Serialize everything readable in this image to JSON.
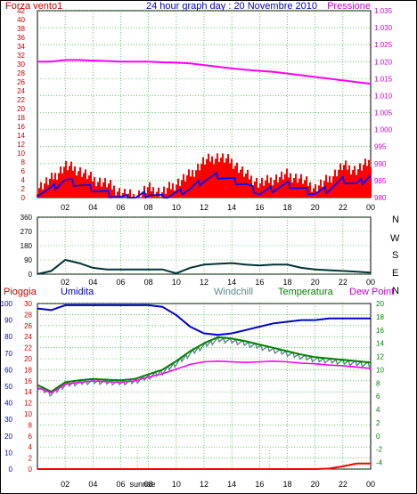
{
  "header": {
    "left_label": "Forza vento1",
    "title": "24 hour graph day : 20 Novembre 2010",
    "right_label": "Pressione"
  },
  "direction_labels": [
    "N",
    "W",
    "S",
    "E",
    "N"
  ],
  "bottom_header": {
    "rain": "Pioggia",
    "humidity": "Umidita",
    "windchill": "Windchill",
    "temperature": "Temperatura",
    "dewpoint": "Dew Point"
  },
  "markers": {
    "sunrise": "sunrise",
    "sunset": "sunset",
    "sunrise_tick": "sunrise"
  },
  "colors": {
    "wind_gust": "#ff0000",
    "wind_avg": "#0000ff",
    "pressure": "#ff00ff",
    "direction": "#003333",
    "humidity": "#0000cc",
    "windchill": "#5a8a8a",
    "temperature": "#008000",
    "dewpoint": "#ff00ff",
    "rain": "#ff0000",
    "grid": "#00aa00",
    "left_axis": "#cc0000",
    "right_axis": "#cc00cc"
  },
  "chart_data": [
    {
      "type": "line",
      "title": "24 hour graph day : 20 Novembre 2010",
      "x_ticks": [
        "02",
        "04",
        "06",
        "08",
        "10",
        "12",
        "14",
        "16",
        "18",
        "20",
        "22",
        "00"
      ],
      "y_left_label": "Forza vento1",
      "y_left_ticks": [
        "0",
        "2",
        "4",
        "6",
        "8",
        "10",
        "12",
        "14",
        "16",
        "18",
        "20",
        "22",
        "24",
        "26",
        "28",
        "30",
        "32",
        "34",
        "36",
        "38",
        "40",
        "42"
      ],
      "ylim_left": [
        0,
        42
      ],
      "y_right_label": "Pressione",
      "y_right_ticks": [
        "980",
        "985",
        "990",
        "995",
        "1.000",
        "1.005",
        "1.010",
        "1.015",
        "1.020",
        "1.025",
        "1.030",
        "1.035"
      ],
      "ylim_right": [
        980,
        1035
      ],
      "x_hours": [
        0,
        1,
        2,
        3,
        4,
        5,
        6,
        7,
        8,
        9,
        10,
        11,
        12,
        13,
        14,
        15,
        16,
        17,
        18,
        19,
        20,
        21,
        22,
        23,
        24
      ],
      "series": [
        {
          "name": "Forza vento1",
          "axis": "left",
          "values": [
            2,
            4,
            7,
            6,
            4,
            3,
            1,
            0,
            2,
            1,
            3,
            5,
            8,
            9,
            8,
            5,
            3,
            4,
            5,
            4,
            2,
            4,
            7,
            6,
            8
          ]
        },
        {
          "name": "Forza vento1",
          "axis": "left",
          "values": [
            1,
            2,
            4,
            3,
            2,
            1,
            0,
            0,
            1,
            0,
            1,
            2,
            4,
            5,
            4,
            3,
            1,
            2,
            3,
            2,
            1,
            2,
            4,
            3,
            5
          ]
        },
        {
          "name": "Pressione",
          "axis": "right",
          "values": [
            1020,
            1020,
            1020.5,
            1020.5,
            1020.3,
            1020.2,
            1020,
            1020,
            1020,
            1019.8,
            1019.7,
            1019.5,
            1019,
            1018.5,
            1018,
            1017.6,
            1017.3,
            1017,
            1016.5,
            1016,
            1015.5,
            1015,
            1014.5,
            1014,
            1013.5
          ]
        }
      ]
    },
    {
      "type": "line",
      "x_ticks": [
        "02",
        "04",
        "06",
        "08",
        "10",
        "12",
        "14",
        "16",
        "18",
        "20",
        "22",
        "00"
      ],
      "y_ticks": [
        "0",
        "90",
        "180",
        "270",
        "360"
      ],
      "ylim": [
        0,
        360
      ],
      "x_hours": [
        0,
        1,
        2,
        3,
        4,
        5,
        6,
        7,
        8,
        9,
        10,
        11,
        12,
        13,
        14,
        15,
        16,
        17,
        18,
        19,
        20,
        21,
        22,
        23,
        24
      ],
      "series": [
        {
          "values": [
            0,
            20,
            90,
            70,
            40,
            30,
            30,
            30,
            30,
            30,
            5,
            40,
            60,
            65,
            70,
            60,
            55,
            60,
            60,
            40,
            30,
            25,
            20,
            15,
            10
          ]
        }
      ]
    },
    {
      "type": "line",
      "x_ticks": [
        "02",
        "04",
        "06",
        "08",
        "10",
        "12",
        "14",
        "16",
        "18",
        "20",
        "22",
        "00"
      ],
      "y_left_label": "Pioggia",
      "y_left_ticks": [
        "0",
        "2",
        "4",
        "6",
        "8",
        "10",
        "12",
        "14",
        "16",
        "18",
        "20",
        "22",
        "24",
        "26",
        "28",
        "30"
      ],
      "ylim_left": [
        0,
        30
      ],
      "y_mid_label": "Umidita",
      "y_mid_ticks": [
        "0",
        "10",
        "20",
        "30",
        "40",
        "50",
        "60",
        "70",
        "80",
        "90",
        "100"
      ],
      "ylim_mid": [
        0,
        100
      ],
      "y_right_ticks": [
        "-4",
        "-2",
        "0",
        "2",
        "4",
        "6",
        "8",
        "10",
        "12",
        "14",
        "16",
        "18",
        "20"
      ],
      "ylim_right": [
        -5,
        20
      ],
      "x_hours": [
        0,
        1,
        2,
        3,
        4,
        5,
        6,
        7,
        8,
        9,
        10,
        11,
        12,
        13,
        14,
        15,
        16,
        17,
        18,
        19,
        20,
        21,
        22,
        23,
        24
      ],
      "series": [
        {
          "name": "Umidita",
          "axis": "mid",
          "values": [
            97,
            96,
            99,
            99,
            99,
            99,
            99,
            99,
            99,
            98,
            93,
            86,
            82,
            81,
            82,
            84,
            86,
            88,
            89,
            90,
            90,
            91,
            91,
            91,
            91
          ]
        },
        {
          "name": "Windchill",
          "axis": "right",
          "values": [
            7.4,
            6.4,
            7.8,
            8.1,
            8.3,
            8.2,
            8.1,
            8.3,
            9.0,
            9.7,
            11.0,
            12.5,
            13.7,
            14.6,
            14.4,
            14.0,
            13.5,
            13.0,
            12.5,
            12.0,
            11.6,
            11.4,
            11.2,
            11.0,
            10.8
          ]
        },
        {
          "name": "Temperatura",
          "axis": "right",
          "values": [
            7.7,
            6.7,
            8.1,
            8.4,
            8.6,
            8.5,
            8.4,
            8.6,
            9.3,
            10.0,
            11.3,
            12.8,
            14.0,
            14.9,
            14.7,
            14.3,
            13.8,
            13.3,
            12.8,
            12.3,
            11.9,
            11.7,
            11.5,
            11.3,
            11.1
          ]
        },
        {
          "name": "Dew Point",
          "axis": "right",
          "values": [
            7.3,
            6.5,
            7.8,
            8.1,
            8.3,
            8.2,
            8.1,
            8.3,
            8.9,
            9.4,
            10.1,
            10.8,
            11.2,
            11.3,
            11.2,
            11.1,
            11.2,
            11.3,
            11.2,
            11.0,
            10.9,
            10.7,
            10.6,
            10.4,
            10.2
          ]
        },
        {
          "name": "Pioggia",
          "axis": "left",
          "values": [
            0,
            0,
            0,
            0,
            0,
            0,
            0,
            0,
            0,
            0,
            0,
            0,
            0,
            0,
            0,
            0,
            0,
            0,
            0,
            0,
            0,
            0.1,
            0.5,
            1.0,
            1.0
          ]
        }
      ]
    }
  ]
}
